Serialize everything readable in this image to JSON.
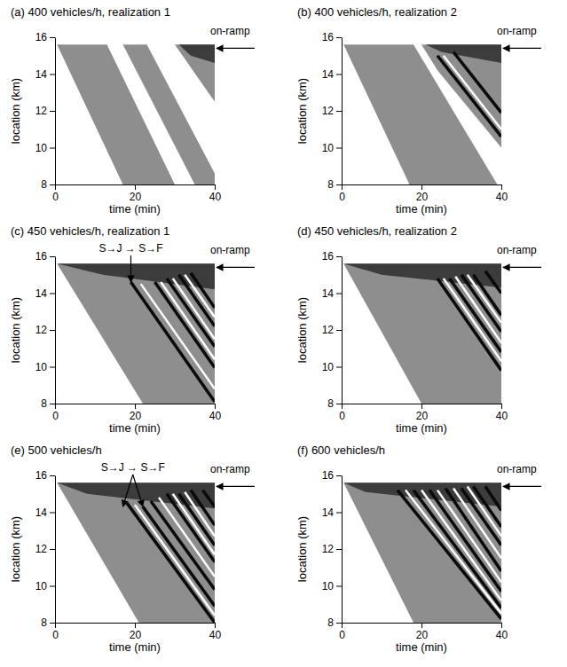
{
  "chart_data": [
    {
      "type": "line",
      "title": "(a) 400 vehicles/h, realization 1",
      "x_label": "time (min)",
      "y_label": "location (km)",
      "xlim": [
        0,
        40
      ],
      "ylim": [
        8,
        16
      ],
      "xticks": [
        0,
        20,
        40
      ],
      "yticks": [
        8,
        10,
        12,
        14,
        16
      ],
      "series": [
        {
          "type": "area",
          "color": "#8e8e8e",
          "x": [
            0.5,
            13,
            30,
            17
          ],
          "values": [
            15.6,
            15.6,
            8,
            8
          ]
        },
        {
          "type": "area",
          "color": "#8e8e8e",
          "x": [
            17,
            23,
            40,
            40,
            35
          ],
          "values": [
            15.6,
            15.6,
            8.6,
            8,
            8
          ]
        },
        {
          "type": "area",
          "color": "#8e8e8e",
          "x": [
            30,
            40,
            40
          ],
          "values": [
            15.6,
            15.6,
            12.5
          ]
        },
        {
          "type": "area",
          "color": "#3c3c3c",
          "x": [
            31,
            40,
            40,
            34
          ],
          "values": [
            15.6,
            15.6,
            14.6,
            15
          ]
        }
      ],
      "annotations": [
        {
          "text": "on-ramp",
          "y": 15.4
        }
      ]
    },
    {
      "type": "line",
      "title": "(b) 400 vehicles/h, realization 2",
      "x_label": "time (min)",
      "y_label": "location (km)",
      "xlim": [
        0,
        40
      ],
      "ylim": [
        8,
        16
      ],
      "xticks": [
        0,
        20,
        40
      ],
      "yticks": [
        8,
        10,
        12,
        14,
        16
      ],
      "series": [
        {
          "type": "area",
          "color": "#8e8e8e",
          "x": [
            0.5,
            18,
            39,
            17
          ],
          "values": [
            15.6,
            15.6,
            8,
            8
          ]
        },
        {
          "type": "area",
          "color": "#8e8e8e",
          "x": [
            20,
            40,
            40,
            24
          ],
          "values": [
            15.6,
            15.6,
            10,
            14.2
          ]
        },
        {
          "type": "area",
          "color": "#3c3c3c",
          "x": [
            21,
            40,
            40,
            25
          ],
          "values": [
            15.6,
            15.6,
            14.6,
            15.2
          ]
        },
        {
          "type": "line",
          "color": "#0a0a0a",
          "x": [
            24,
            40
          ],
          "values": [
            15,
            10.6
          ]
        },
        {
          "type": "line",
          "color": "#ffffff",
          "x": [
            25.5,
            40
          ],
          "values": [
            15,
            11
          ]
        },
        {
          "type": "line",
          "color": "#0a0a0a",
          "x": [
            28,
            40
          ],
          "values": [
            15.2,
            11.9
          ]
        }
      ],
      "annotations": [
        {
          "text": "on-ramp",
          "y": 15.4
        }
      ]
    },
    {
      "type": "line",
      "title": "(c) 450 vehicles/h, realization 1",
      "x_label": "time (min)",
      "y_label": "location (km)",
      "xlim": [
        0,
        40
      ],
      "ylim": [
        8,
        16
      ],
      "xticks": [
        0,
        20,
        40
      ],
      "yticks": [
        8,
        10,
        12,
        14,
        16
      ],
      "series": [
        {
          "type": "area",
          "color": "#8e8e8e",
          "x": [
            0.5,
            40,
            40,
            22
          ],
          "values": [
            15.6,
            15.6,
            8,
            8
          ]
        },
        {
          "type": "area",
          "color": "#3c3c3c",
          "x": [
            0.5,
            40,
            40,
            12
          ],
          "values": [
            15.6,
            15.6,
            14.2,
            15
          ]
        },
        {
          "type": "line",
          "color": "#0a0a0a",
          "x": [
            19,
            40
          ],
          "values": [
            14.6,
            8.1
          ]
        },
        {
          "type": "line",
          "color": "#ffffff",
          "x": [
            21.5,
            40
          ],
          "values": [
            14.5,
            8.8
          ]
        },
        {
          "type": "line",
          "color": "#0a0a0a",
          "x": [
            25,
            40
          ],
          "values": [
            14.6,
            9.95
          ]
        },
        {
          "type": "line",
          "color": "#ffffff",
          "x": [
            26.5,
            40
          ],
          "values": [
            14.6,
            10.4
          ]
        },
        {
          "type": "line",
          "color": "#0a0a0a",
          "x": [
            28,
            40
          ],
          "values": [
            14.8,
            11.1
          ]
        },
        {
          "type": "line",
          "color": "#ffffff",
          "x": [
            29.5,
            40
          ],
          "values": [
            14.8,
            11.5
          ]
        },
        {
          "type": "line",
          "color": "#0a0a0a",
          "x": [
            31,
            40
          ],
          "values": [
            15,
            12.2
          ]
        },
        {
          "type": "line",
          "color": "#ffffff",
          "x": [
            32.5,
            40
          ],
          "values": [
            15,
            12.7
          ]
        },
        {
          "type": "line",
          "color": "#0a0a0a",
          "x": [
            34,
            40
          ],
          "values": [
            15.1,
            13.2
          ]
        }
      ],
      "annotations": [
        {
          "text": "on-ramp",
          "y": 15.4
        },
        {
          "text": "S→J → S→F",
          "x": [
            19
          ],
          "y": [
            14.6
          ]
        }
      ]
    },
    {
      "type": "line",
      "title": "(d) 450 vehicles/h, realization 2",
      "x_label": "time (min)",
      "y_label": "location (km)",
      "xlim": [
        0,
        40
      ],
      "ylim": [
        8,
        16
      ],
      "xticks": [
        0,
        20,
        40
      ],
      "yticks": [
        8,
        10,
        12,
        14,
        16
      ],
      "series": [
        {
          "type": "area",
          "color": "#8e8e8e",
          "x": [
            0.5,
            40,
            40,
            20
          ],
          "values": [
            15.6,
            15.6,
            8,
            8
          ]
        },
        {
          "type": "area",
          "color": "#3c3c3c",
          "x": [
            0.5,
            40,
            40,
            10
          ],
          "values": [
            15.6,
            15.6,
            14.3,
            15
          ]
        },
        {
          "type": "line",
          "color": "#0a0a0a",
          "x": [
            24,
            40
          ],
          "values": [
            14.8,
            9.8
          ]
        },
        {
          "type": "line",
          "color": "#ffffff",
          "x": [
            25.5,
            40
          ],
          "values": [
            14.8,
            10.3
          ]
        },
        {
          "type": "line",
          "color": "#0a0a0a",
          "x": [
            27,
            40
          ],
          "values": [
            14.8,
            10.8
          ]
        },
        {
          "type": "line",
          "color": "#ffffff",
          "x": [
            28.5,
            40
          ],
          "values": [
            14.9,
            11.3
          ]
        },
        {
          "type": "line",
          "color": "#0a0a0a",
          "x": [
            30,
            40
          ],
          "values": [
            15,
            11.9
          ]
        },
        {
          "type": "line",
          "color": "#ffffff",
          "x": [
            31.5,
            40
          ],
          "values": [
            15,
            12.4
          ]
        },
        {
          "type": "line",
          "color": "#0a0a0a",
          "x": [
            33,
            40
          ],
          "values": [
            15,
            12.8
          ]
        },
        {
          "type": "line",
          "color": "#0a0a0a",
          "x": [
            36,
            40
          ],
          "values": [
            15.2,
            14
          ]
        }
      ],
      "annotations": [
        {
          "text": "on-ramp",
          "y": 15.4
        }
      ]
    },
    {
      "type": "line",
      "title": "(e) 500 vehicles/h",
      "x_label": "time (min)",
      "y_label": "location (km)",
      "xlim": [
        0,
        40
      ],
      "ylim": [
        8,
        16
      ],
      "xticks": [
        0,
        20,
        40
      ],
      "yticks": [
        8,
        10,
        12,
        14,
        16
      ],
      "series": [
        {
          "type": "area",
          "color": "#8e8e8e",
          "x": [
            0.5,
            40,
            40,
            21
          ],
          "values": [
            15.6,
            15.6,
            8,
            8
          ]
        },
        {
          "type": "area",
          "color": "#3c3c3c",
          "x": [
            0.5,
            40,
            40,
            8
          ],
          "values": [
            15.6,
            15.6,
            14.2,
            15
          ]
        },
        {
          "type": "line",
          "color": "#0a0a0a",
          "x": [
            18,
            40
          ],
          "values": [
            14.5,
            8
          ]
        },
        {
          "type": "line",
          "color": "#ffffff",
          "x": [
            20,
            40
          ],
          "values": [
            14.4,
            8.4
          ]
        },
        {
          "type": "line",
          "color": "#0a0a0a",
          "x": [
            22,
            40
          ],
          "values": [
            14.3,
            8.9
          ]
        },
        {
          "type": "line",
          "color": "#0a0a0a",
          "x": [
            24,
            40
          ],
          "values": [
            14.6,
            9.8
          ]
        },
        {
          "type": "line",
          "color": "#ffffff",
          "x": [
            26,
            40
          ],
          "values": [
            14.8,
            10.5
          ]
        },
        {
          "type": "line",
          "color": "#0a0a0a",
          "x": [
            28,
            40
          ],
          "values": [
            15,
            11.3
          ]
        },
        {
          "type": "line",
          "color": "#ffffff",
          "x": [
            29.5,
            40
          ],
          "values": [
            15,
            11.7
          ]
        },
        {
          "type": "line",
          "color": "#0a0a0a",
          "x": [
            31,
            40
          ],
          "values": [
            15,
            12.2
          ]
        },
        {
          "type": "line",
          "color": "#ffffff",
          "x": [
            32.5,
            40
          ],
          "values": [
            15.1,
            12.7
          ]
        },
        {
          "type": "line",
          "color": "#0a0a0a",
          "x": [
            34,
            40
          ],
          "values": [
            15.2,
            13.3
          ]
        },
        {
          "type": "line",
          "color": "#0a0a0a",
          "x": [
            37,
            40
          ],
          "values": [
            15.2,
            14.3
          ]
        }
      ],
      "annotations": [
        {
          "text": "on-ramp",
          "y": 15.4
        },
        {
          "text": "S→J → S→F",
          "x": [
            17,
            22
          ],
          "y": [
            14.3,
            14.3
          ]
        }
      ]
    },
    {
      "type": "line",
      "title": "(f) 600 vehicles/h",
      "x_label": "time (min)",
      "y_label": "location (km)",
      "xlim": [
        0,
        40
      ],
      "ylim": [
        8,
        16
      ],
      "xticks": [
        0,
        20,
        40
      ],
      "yticks": [
        8,
        10,
        12,
        14,
        16
      ],
      "series": [
        {
          "type": "area",
          "color": "#8e8e8e",
          "x": [
            0.5,
            40,
            40,
            18
          ],
          "values": [
            15.6,
            15.6,
            8,
            8
          ]
        },
        {
          "type": "area",
          "color": "#3c3c3c",
          "x": [
            0.5,
            40,
            40,
            6
          ],
          "values": [
            15.6,
            15.6,
            14.3,
            15.1
          ]
        },
        {
          "type": "line",
          "color": "#0a0a0a",
          "x": [
            14,
            40
          ],
          "values": [
            15.2,
            8.2
          ]
        },
        {
          "type": "line",
          "color": "#ffffff",
          "x": [
            16,
            40
          ],
          "values": [
            15.2,
            8.5
          ]
        },
        {
          "type": "line",
          "color": "#0a0a0a",
          "x": [
            18,
            40
          ],
          "values": [
            15.2,
            8.8
          ]
        },
        {
          "type": "line",
          "color": "#ffffff",
          "x": [
            20,
            40
          ],
          "values": [
            15.2,
            9.2
          ]
        },
        {
          "type": "line",
          "color": "#0a0a0a",
          "x": [
            22,
            40
          ],
          "values": [
            15.2,
            9.7
          ]
        },
        {
          "type": "line",
          "color": "#ffffff",
          "x": [
            24,
            40
          ],
          "values": [
            15.2,
            10.2
          ]
        },
        {
          "type": "line",
          "color": "#0a0a0a",
          "x": [
            26,
            40
          ],
          "values": [
            15.3,
            10.8
          ]
        },
        {
          "type": "line",
          "color": "#ffffff",
          "x": [
            28,
            40
          ],
          "values": [
            15.3,
            11.5
          ]
        },
        {
          "type": "line",
          "color": "#0a0a0a",
          "x": [
            30,
            40
          ],
          "values": [
            15.3,
            12.2
          ]
        },
        {
          "type": "line",
          "color": "#ffffff",
          "x": [
            31.5,
            40
          ],
          "values": [
            15.4,
            12.7
          ]
        },
        {
          "type": "line",
          "color": "#0a0a0a",
          "x": [
            33,
            40
          ],
          "values": [
            15.4,
            13.2
          ]
        },
        {
          "type": "line",
          "color": "#0a0a0a",
          "x": [
            36,
            40
          ],
          "values": [
            15.4,
            14.1
          ]
        }
      ],
      "annotations": [
        {
          "text": "on-ramp",
          "y": 15.4
        }
      ]
    }
  ]
}
